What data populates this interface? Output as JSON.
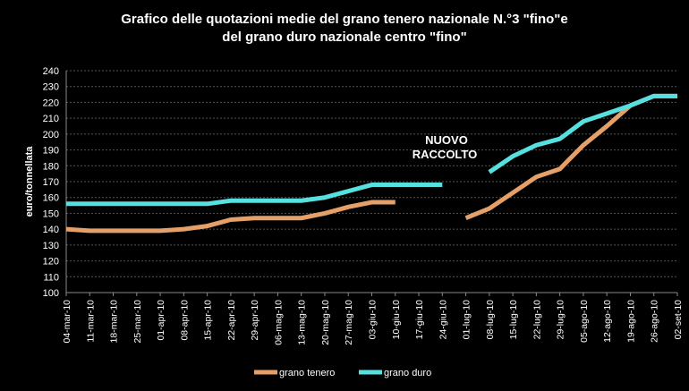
{
  "chart_data": {
    "type": "line",
    "title": [
      "Grafico delle quotazioni medie del grano tenero nazionale N.°3 \"fino\"e",
      "del grano duro nazionale centro \"fino\""
    ],
    "ylabel": "euro/tonnellata",
    "xlabel": "",
    "ylim": [
      100,
      240
    ],
    "yticks": [
      100,
      110,
      120,
      130,
      140,
      150,
      160,
      170,
      180,
      190,
      200,
      210,
      220,
      230,
      240
    ],
    "grid": true,
    "legend_position": "bottom",
    "categories": [
      "04-mar-10",
      "11-mar-10",
      "18-mar-10",
      "25-mar-10",
      "01-apr-10",
      "08-apr-10",
      "15-apr-10",
      "22-apr-10",
      "29-apr-10",
      "06-mag-10",
      "13-mag-10",
      "20-mag-10",
      "27-mag-10",
      "03-giu-10",
      "10-giu-10",
      "17-giu-10",
      "24-giu-10",
      "01-lug-10",
      "08-lug-10",
      "15-lug-10",
      "22-lug-10",
      "29-lug-10",
      "05-ago-10",
      "12-ago-10",
      "19-ago-10",
      "26-ago-10",
      "02-set-10"
    ],
    "series": [
      {
        "name": "grano tenero",
        "color": "#E5A06A",
        "values": [
          140,
          139,
          139,
          139,
          139,
          140,
          142,
          146,
          147,
          147,
          147,
          150,
          154,
          157,
          157,
          null,
          null,
          147,
          153,
          163,
          173,
          178,
          193,
          205,
          218,
          224,
          224
        ]
      },
      {
        "name": "grano duro",
        "color": "#57E0E0",
        "values": [
          156,
          156,
          156,
          156,
          156,
          156,
          156,
          158,
          158,
          158,
          158,
          160,
          164,
          168,
          168,
          168,
          168,
          null,
          176,
          186,
          193,
          197,
          208,
          213,
          218,
          224,
          224
        ]
      }
    ],
    "annotations": [
      {
        "text": [
          "NUOVO",
          "RACCOLTO"
        ]
      }
    ]
  }
}
